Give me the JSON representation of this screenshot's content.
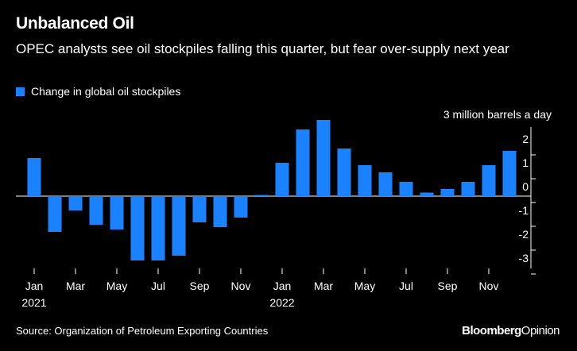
{
  "header": {
    "title": "Unbalanced Oil",
    "subtitle": "OPEC analysts see oil stockpiles falling this quarter, but fear over-supply next year"
  },
  "footer": {
    "source": "Source: Organization of Petroleum Exporting Countries",
    "brand_bold": "Bloomberg",
    "brand_light": "Opinion"
  },
  "colors": {
    "background": "#000000",
    "bar": "#1a82ff",
    "text": "#ffffff"
  },
  "chart_data": {
    "type": "bar",
    "title": "Unbalanced Oil",
    "subtitle": "OPEC analysts see oil stockpiles falling this quarter, but fear over-supply next year",
    "unit_label": "3 million barrels a day",
    "legend": [
      "Change in global oil stockpiles"
    ],
    "legend_position": "top-left",
    "categories": [
      "Jan 2021",
      "Feb 2021",
      "Mar 2021",
      "Apr 2021",
      "May 2021",
      "Jun 2021",
      "Jul 2021",
      "Aug 2021",
      "Sep 2021",
      "Oct 2021",
      "Nov 2021",
      "Dec 2021",
      "Jan 2022",
      "Feb 2022",
      "Mar 2022",
      "Apr 2022",
      "May 2022",
      "Jun 2022",
      "Jul 2022",
      "Aug 2022",
      "Sep 2022",
      "Oct 2022",
      "Nov 2022",
      "Dec 2022"
    ],
    "series": [
      {
        "name": "Change in global oil stockpiles",
        "values": [
          1.6,
          -1.5,
          -0.6,
          -1.2,
          -1.4,
          -2.7,
          -2.7,
          -2.5,
          -1.1,
          -1.3,
          -0.9,
          0.05,
          1.4,
          2.8,
          3.2,
          2.0,
          1.3,
          1.0,
          0.6,
          0.15,
          0.3,
          0.6,
          1.3,
          1.9
        ]
      }
    ],
    "x_tick_labels": [
      {
        "index": 0,
        "label": "Jan",
        "year": "2021"
      },
      {
        "index": 2,
        "label": "Mar",
        "year": ""
      },
      {
        "index": 4,
        "label": "May",
        "year": ""
      },
      {
        "index": 6,
        "label": "Jul",
        "year": ""
      },
      {
        "index": 8,
        "label": "Sep",
        "year": ""
      },
      {
        "index": 10,
        "label": "Nov",
        "year": ""
      },
      {
        "index": 12,
        "label": "Jan",
        "year": "2022"
      },
      {
        "index": 14,
        "label": "Mar",
        "year": ""
      },
      {
        "index": 16,
        "label": "May",
        "year": ""
      },
      {
        "index": 18,
        "label": "Jul",
        "year": ""
      },
      {
        "index": 20,
        "label": "Sep",
        "year": ""
      },
      {
        "index": 22,
        "label": "Nov",
        "year": ""
      }
    ],
    "y_ticks": [
      {
        "value": 2,
        "label": "2"
      },
      {
        "value": 1,
        "label": "1"
      },
      {
        "value": 0,
        "label": "0"
      },
      {
        "value": -1,
        "label": "-1"
      },
      {
        "value": -2,
        "label": "-2"
      },
      {
        "value": -3,
        "label": "-3"
      }
    ],
    "ylim": [
      -3,
      3
    ],
    "grid": false,
    "y_axis_position": "right"
  }
}
